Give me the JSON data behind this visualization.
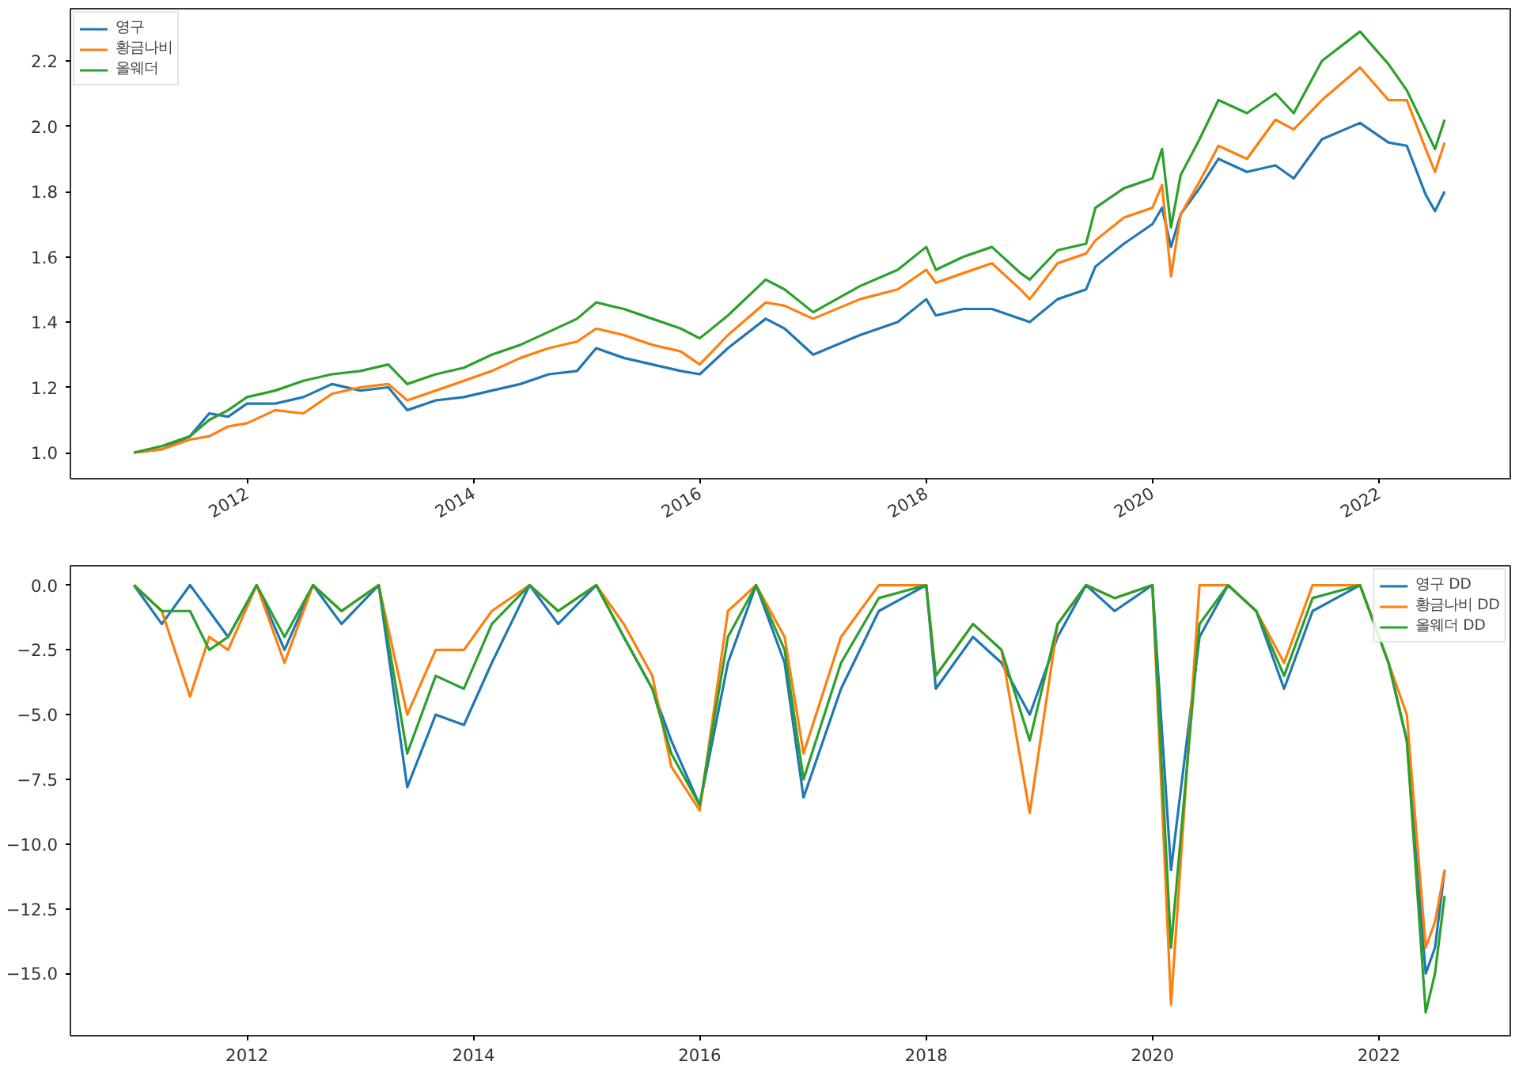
{
  "chart_data": [
    {
      "type": "line",
      "legend": "top left",
      "grid": false,
      "line_style": "solid",
      "x": [
        "2011-01",
        "2011-04",
        "2011-07",
        "2011-09",
        "2011-11",
        "2012-01",
        "2012-04",
        "2012-07",
        "2012-10",
        "2013-01",
        "2013-04",
        "2013-06",
        "2013-09",
        "2013-12",
        "2014-03",
        "2014-06",
        "2014-09",
        "2014-12",
        "2015-02",
        "2015-05",
        "2015-08",
        "2015-11",
        "2016-01",
        "2016-04",
        "2016-08",
        "2016-10",
        "2017-01",
        "2017-06",
        "2017-10",
        "2018-01",
        "2018-02",
        "2018-05",
        "2018-08",
        "2018-11",
        "2018-12",
        "2019-03",
        "2019-06",
        "2019-07",
        "2019-10",
        "2020-01",
        "2020-02",
        "2020-03",
        "2020-04",
        "2020-06",
        "2020-08",
        "2020-11",
        "2021-02",
        "2021-04",
        "2021-07",
        "2021-11",
        "2022-02",
        "2022-04",
        "2022-06",
        "2022-07",
        "2022-08"
      ],
      "series": [
        {
          "name": "영구",
          "color": "#1f77b4",
          "values": [
            1.0,
            1.01,
            1.05,
            1.12,
            1.11,
            1.15,
            1.15,
            1.17,
            1.21,
            1.19,
            1.2,
            1.13,
            1.16,
            1.17,
            1.19,
            1.21,
            1.24,
            1.25,
            1.32,
            1.29,
            1.27,
            1.25,
            1.24,
            1.32,
            1.41,
            1.38,
            1.3,
            1.36,
            1.4,
            1.47,
            1.42,
            1.44,
            1.44,
            1.41,
            1.4,
            1.47,
            1.5,
            1.57,
            1.64,
            1.7,
            1.75,
            1.63,
            1.73,
            1.81,
            1.9,
            1.86,
            1.88,
            1.84,
            1.96,
            2.01,
            1.95,
            1.94,
            1.79,
            1.74,
            1.8
          ]
        },
        {
          "name": "황금나비",
          "color": "#ff7f0e",
          "values": [
            1.0,
            1.01,
            1.04,
            1.05,
            1.08,
            1.09,
            1.13,
            1.12,
            1.18,
            1.2,
            1.21,
            1.16,
            1.19,
            1.22,
            1.25,
            1.29,
            1.32,
            1.34,
            1.38,
            1.36,
            1.33,
            1.31,
            1.27,
            1.36,
            1.46,
            1.45,
            1.41,
            1.47,
            1.5,
            1.56,
            1.52,
            1.55,
            1.58,
            1.5,
            1.47,
            1.58,
            1.61,
            1.65,
            1.72,
            1.75,
            1.82,
            1.54,
            1.73,
            1.83,
            1.94,
            1.9,
            2.02,
            1.99,
            2.08,
            2.18,
            2.08,
            2.08,
            1.93,
            1.86,
            1.95
          ]
        },
        {
          "name": "올웨더",
          "color": "#2ca02c",
          "values": [
            1.0,
            1.02,
            1.05,
            1.1,
            1.13,
            1.17,
            1.19,
            1.22,
            1.24,
            1.25,
            1.27,
            1.21,
            1.24,
            1.26,
            1.3,
            1.33,
            1.37,
            1.41,
            1.46,
            1.44,
            1.41,
            1.38,
            1.35,
            1.42,
            1.53,
            1.5,
            1.43,
            1.51,
            1.56,
            1.63,
            1.56,
            1.6,
            1.63,
            1.55,
            1.53,
            1.62,
            1.64,
            1.75,
            1.81,
            1.84,
            1.93,
            1.69,
            1.85,
            1.96,
            2.08,
            2.04,
            2.1,
            2.04,
            2.2,
            2.29,
            2.19,
            2.11,
            1.99,
            1.93,
            2.02
          ]
        }
      ],
      "xlim": [
        "2010-06-10",
        "2023-03-01"
      ],
      "xticks": [
        {
          "value": "2012-01-01",
          "label": "2012"
        },
        {
          "value": "2014-01-01",
          "label": "2014"
        },
        {
          "value": "2016-01-01",
          "label": "2016"
        },
        {
          "value": "2018-01-01",
          "label": "2018"
        },
        {
          "value": "2020-01-01",
          "label": "2020"
        },
        {
          "value": "2022-01-01",
          "label": "2022"
        }
      ],
      "ylim": [
        0.92,
        2.36
      ],
      "yticks": [
        {
          "value": 1.0,
          "label": "1.0"
        },
        {
          "value": 1.2,
          "label": "1.2"
        },
        {
          "value": 1.4,
          "label": "1.4"
        },
        {
          "value": 1.6,
          "label": "1.6"
        },
        {
          "value": 1.8,
          "label": "1.8"
        },
        {
          "value": 2.0,
          "label": "2.0"
        },
        {
          "value": 2.2,
          "label": "2.2"
        }
      ]
    },
    {
      "type": "line",
      "legend": "top right",
      "grid": false,
      "line_style": "solid",
      "x": [
        "2011-01",
        "2011-04",
        "2011-07",
        "2011-09",
        "2011-11",
        "2012-02",
        "2012-05",
        "2012-08",
        "2012-11",
        "2013-03",
        "2013-06",
        "2013-09",
        "2013-12",
        "2014-03",
        "2014-07",
        "2014-10",
        "2015-02",
        "2015-05",
        "2015-08",
        "2015-10",
        "2016-01",
        "2016-04",
        "2016-07",
        "2016-10",
        "2016-12",
        "2017-04",
        "2017-08",
        "2018-01",
        "2018-02",
        "2018-06",
        "2018-09",
        "2018-12",
        "2019-03",
        "2019-06",
        "2019-09",
        "2020-01",
        "2020-03",
        "2020-06",
        "2020-09",
        "2020-12",
        "2021-03",
        "2021-06",
        "2021-11",
        "2022-02",
        "2022-04",
        "2022-06",
        "2022-07",
        "2022-08"
      ],
      "series": [
        {
          "name": "영구 DD",
          "color": "#1f77b4",
          "values": [
            0,
            -1.5,
            0,
            -1.0,
            -2.0,
            0,
            -2.5,
            0,
            -1.5,
            0,
            -7.8,
            -5.0,
            -5.4,
            -3.0,
            0,
            -1.5,
            0,
            -2.0,
            -4.0,
            -6.0,
            -8.5,
            -3.0,
            0,
            -3.0,
            -8.2,
            -4.0,
            -1.0,
            0,
            -4.0,
            -2.0,
            -3.0,
            -5.0,
            -2.0,
            0,
            -1.0,
            0,
            -11.0,
            -2.0,
            0,
            -1.0,
            -4.0,
            -1.0,
            0,
            -3.0,
            -6.0,
            -15.0,
            -14.0,
            -11.0
          ]
        },
        {
          "name": "황금나비 DD",
          "color": "#ff7f0e",
          "values": [
            0,
            -1.0,
            -4.3,
            -2.0,
            -2.5,
            0,
            -3.0,
            0,
            -1.0,
            0,
            -5.0,
            -2.5,
            -2.5,
            -1.0,
            0,
            -1.0,
            0,
            -1.5,
            -3.5,
            -7.0,
            -8.7,
            -1.0,
            0,
            -2.0,
            -6.5,
            -2.0,
            0,
            0,
            -3.5,
            -1.5,
            -2.5,
            -8.8,
            -1.5,
            0,
            -0.5,
            0,
            -16.2,
            0,
            0,
            -1.0,
            -3.0,
            0,
            0,
            -3.0,
            -5.0,
            -14.0,
            -13.0,
            -11.0
          ]
        },
        {
          "name": "올웨더 DD",
          "color": "#2ca02c",
          "values": [
            0,
            -1.0,
            -1.0,
            -2.5,
            -2.0,
            0,
            -2.0,
            0,
            -1.0,
            0,
            -6.5,
            -3.5,
            -4.0,
            -1.5,
            0,
            -1.0,
            0,
            -2.0,
            -4.0,
            -6.5,
            -8.5,
            -2.0,
            0,
            -2.5,
            -7.5,
            -3.0,
            -0.5,
            0,
            -3.5,
            -1.5,
            -2.5,
            -6.0,
            -1.5,
            0,
            -0.5,
            0,
            -14.0,
            -1.5,
            0,
            -1.0,
            -3.5,
            -0.5,
            0,
            -3.0,
            -6.0,
            -16.5,
            -15.0,
            -12.0
          ]
        }
      ],
      "xlim": [
        "2010-06-10",
        "2023-03-01"
      ],
      "xticks": [
        {
          "value": "2012-01-01",
          "label": "2012"
        },
        {
          "value": "2014-01-01",
          "label": "2014"
        },
        {
          "value": "2016-01-01",
          "label": "2016"
        },
        {
          "value": "2018-01-01",
          "label": "2018"
        },
        {
          "value": "2020-01-01",
          "label": "2020"
        },
        {
          "value": "2022-01-01",
          "label": "2022"
        }
      ],
      "ylim": [
        -17.4,
        0.75
      ],
      "yticks": [
        {
          "value": 0.0,
          "label": "0.0"
        },
        {
          "value": -2.5,
          "label": "−2.5"
        },
        {
          "value": -5.0,
          "label": "−5.0"
        },
        {
          "value": -7.5,
          "label": "−7.5"
        },
        {
          "value": -10.0,
          "label": "−10.0"
        },
        {
          "value": -12.5,
          "label": "−12.5"
        },
        {
          "value": -15.0,
          "label": "−15.0"
        }
      ]
    }
  ]
}
